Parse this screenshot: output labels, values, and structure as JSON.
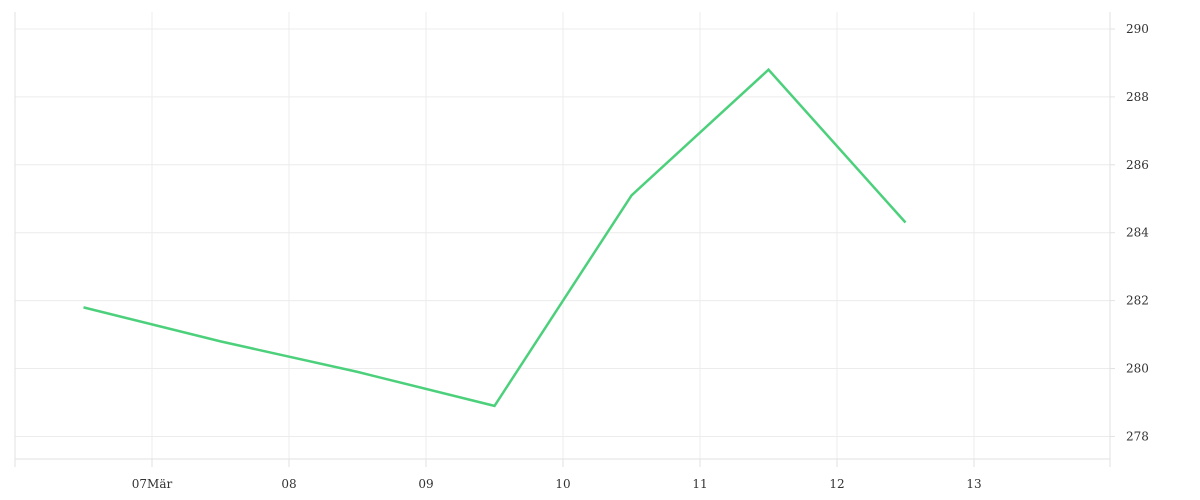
{
  "chart_data": {
    "type": "line",
    "title": "",
    "xlabel": "",
    "ylabel": "",
    "x_ticks": [
      "07Mär",
      "08",
      "09",
      "10",
      "11",
      "12",
      "13"
    ],
    "x": [
      "06.5",
      "07.5",
      "08.5",
      "09.5",
      "10.5",
      "11.5",
      "12.5"
    ],
    "series": [
      {
        "values": [
          281.8,
          280.8,
          279.9,
          278.9,
          285.1,
          288.8,
          284.3
        ]
      }
    ],
    "y_ticks": [
      278,
      280,
      282,
      284,
      286,
      288,
      290
    ],
    "ylim": [
      277.1,
      290.5
    ],
    "y_axis_side": "right",
    "grid": true,
    "legend": "none",
    "colors": {
      "series": "#4cd07b",
      "grid": "#ececec",
      "text": "#333333"
    }
  }
}
